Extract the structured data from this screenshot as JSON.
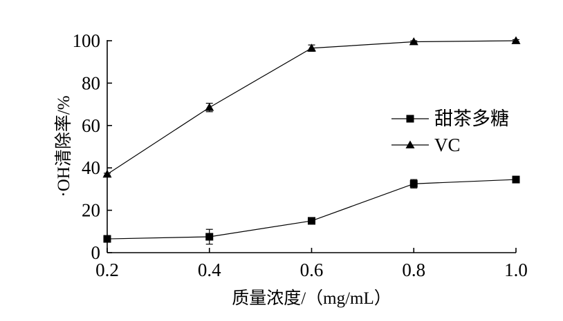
{
  "chart_data": {
    "type": "line",
    "title": "",
    "xlabel": "质量浓度/（mg/mL）",
    "ylabel": "·OH清除率/%",
    "x": [
      0.2,
      0.4,
      0.6,
      0.8,
      1.0
    ],
    "x_ticks": [
      "0.2",
      "0.4",
      "0.6",
      "0.8",
      "1.0"
    ],
    "y_ticks": [
      "0",
      "20",
      "40",
      "60",
      "80",
      "100"
    ],
    "xlim": [
      0.2,
      1.0
    ],
    "ylim": [
      0,
      100
    ],
    "grid": false,
    "legend_position": "right",
    "series": [
      {
        "name": "甜茶多糖",
        "marker": "square",
        "values": [
          6.5,
          7.5,
          15.0,
          32.5,
          34.5
        ],
        "errors": [
          1.0,
          3.5,
          1.0,
          2.0,
          1.5
        ]
      },
      {
        "name": "VC",
        "marker": "triangle",
        "values": [
          37.0,
          68.5,
          96.5,
          99.5,
          100.0
        ],
        "errors": [
          0.5,
          2.0,
          1.5,
          0.5,
          0.5
        ]
      }
    ]
  },
  "colors": {
    "line": "#000000"
  }
}
